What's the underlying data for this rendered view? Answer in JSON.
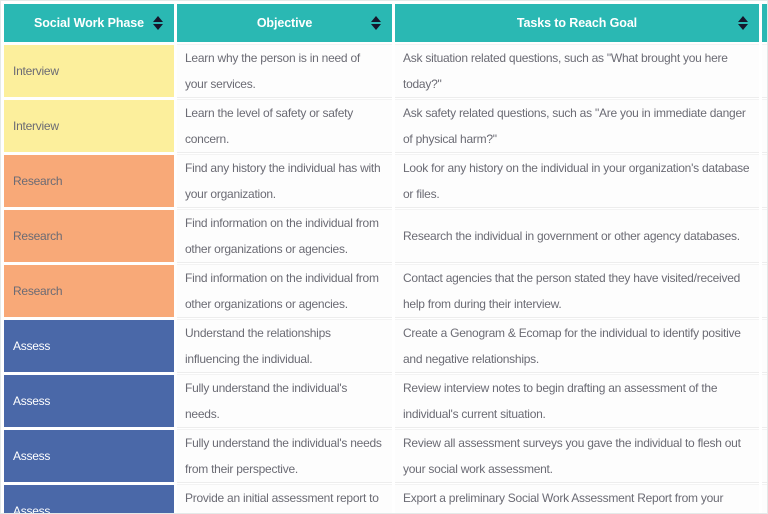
{
  "colors": {
    "header_bg": "#2ab8b3",
    "header_text": "#ffffff",
    "sort_icon": "#16162b",
    "interview_bg": "#fcef9c",
    "research_bg": "#f8a978",
    "assess_bg": "#4a68a8",
    "assess_text": "#ffffff",
    "body_text": "#6b6b74",
    "row_separator": "#ededed",
    "page_bg": "#ffffff"
  },
  "table": {
    "columns": [
      {
        "label": "Social Work Phase"
      },
      {
        "label": "Objective"
      },
      {
        "label": "Tasks to Reach Goal"
      },
      {
        "label": ""
      }
    ],
    "rows": [
      {
        "phase": "Interview",
        "objective": "Learn why the person is in need of your services.",
        "tasks": "Ask situation related questions, such as \"What brought you here today?\""
      },
      {
        "phase": "Interview",
        "objective": "Learn the level of safety or safety concern.",
        "tasks": "Ask safety related questions, such as \"Are you in immediate danger of physical harm?\""
      },
      {
        "phase": "Research",
        "objective": "Find any history the individual has with your organization.",
        "tasks": "Look for any history on the individual in your organization's database or files."
      },
      {
        "phase": "Research",
        "objective": "Find information on the individual from other organizations or agencies.",
        "tasks": "Research the individual in government or other agency databases."
      },
      {
        "phase": "Research",
        "objective": "Find information on the individual from other organizations or agencies.",
        "tasks": "Contact agencies that the person stated they have visited/received help from during their interview."
      },
      {
        "phase": "Assess",
        "objective": "Understand the relationships influencing the individual.",
        "tasks": "Create a Genogram & Ecomap for the individual to identify positive and negative relationships."
      },
      {
        "phase": "Assess",
        "objective": "Fully understand the individual's needs.",
        "tasks": "Review interview notes to begin drafting an assessment of the individual's current situation."
      },
      {
        "phase": "Assess",
        "objective": "Fully understand the individual's needs from their perspective.",
        "tasks": "Review all assessment surveys you gave the individual to flesh out your social work assessment."
      },
      {
        "phase": "Assess",
        "objective": "Provide an initial assessment report to the",
        "tasks": "Export a preliminary Social Work Assessment Report from your Social Work"
      }
    ]
  }
}
